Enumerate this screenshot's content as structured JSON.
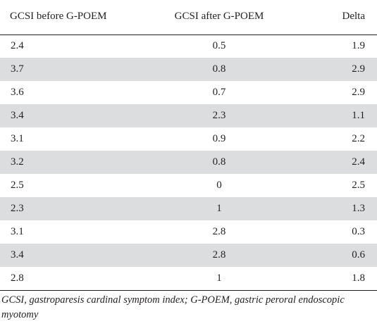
{
  "table": {
    "headers": [
      "GCSI before G-POEM",
      "GCSI after G-POEM",
      "Delta"
    ],
    "rows": [
      [
        "2.4",
        "0.5",
        "1.9"
      ],
      [
        "3.7",
        "0.8",
        "2.9"
      ],
      [
        "3.6",
        "0.7",
        "2.9"
      ],
      [
        "3.4",
        "2.3",
        "1.1"
      ],
      [
        "3.1",
        "0.9",
        "2.2"
      ],
      [
        "3.2",
        "0.8",
        "2.4"
      ],
      [
        "2.5",
        "0",
        "2.5"
      ],
      [
        "2.3",
        "1",
        "1.3"
      ],
      [
        "3.1",
        "2.8",
        "0.3"
      ],
      [
        "3.4",
        "2.8",
        "0.6"
      ],
      [
        "2.8",
        "1",
        "1.8"
      ]
    ]
  },
  "footnote": "GCSI, gastroparesis cardinal symptom index; G-POEM, gastric peroral endoscopic myotomy",
  "colors": {
    "stripe": "#dcdddf",
    "text": "#231f20",
    "rule": "#231f20"
  }
}
